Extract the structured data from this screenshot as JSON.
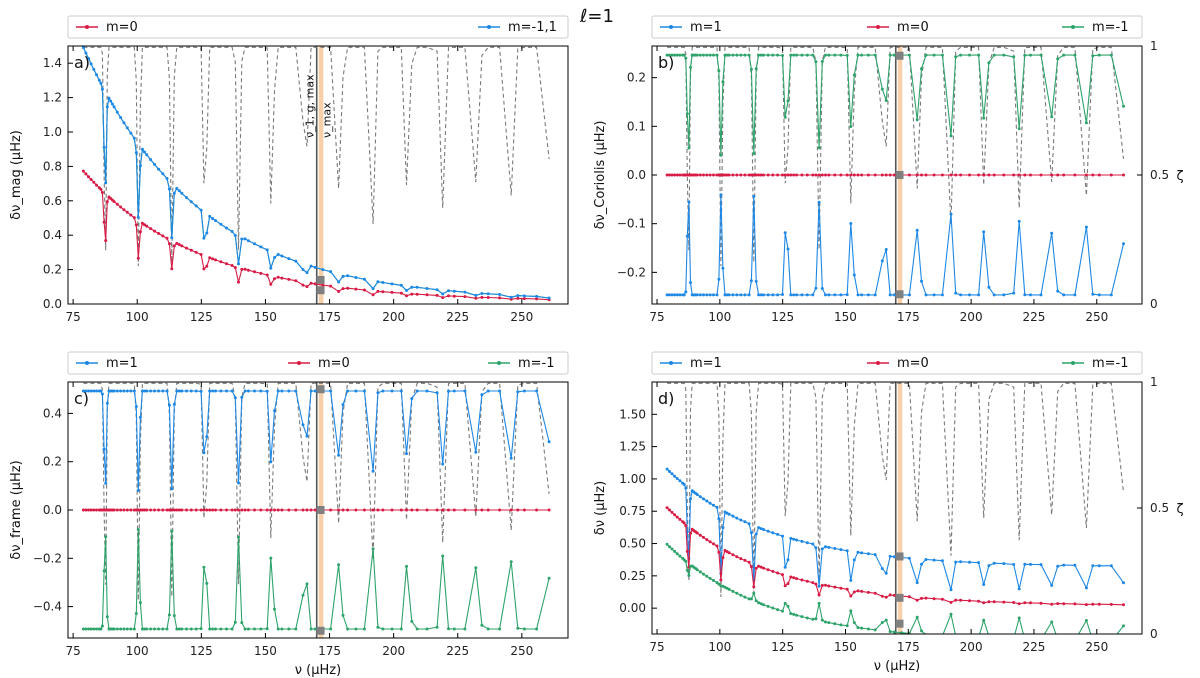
{
  "suptitle": "ℓ=1",
  "colors": {
    "m1": "#1e88e5",
    "m0": "#d81b45",
    "mneg1": "#2ea36a",
    "zeta": "#7a7a7a",
    "numax_band": "#f6c89a",
    "vline": "#555555",
    "marker": "#808080"
  },
  "chart_data": [
    {
      "type": "line",
      "panel": "a)",
      "title": "",
      "xlabel": "",
      "ylabel": "δν_mag (μHz)",
      "xlim": [
        73,
        268
      ],
      "ylim": [
        0,
        1.5
      ],
      "xticks": [
        "75",
        "100",
        "125",
        "150",
        "175",
        "200",
        "225",
        "250"
      ],
      "yticks": [
        "0.0",
        "0.2",
        "0.4",
        "0.6",
        "0.8",
        "1.0",
        "1.2",
        "1.4"
      ],
      "legend": [
        "m=0",
        "m=-1,1"
      ],
      "legend_placement": "top, above plot",
      "annotations": [
        "ν_1, g, max",
        "ν_max"
      ],
      "vline_nu1gmax": 170,
      "numax_band": [
        170.8,
        172.6
      ],
      "right_axis": {
        "label": "",
        "ticks": [],
        "lim": [
          0,
          1
        ]
      },
      "series": [
        {
          "name": "m=0",
          "color_key": "m0",
          "base_start": 0.76,
          "base_decay": 45,
          "dip_depth": 0.4,
          "extra_dips": false
        },
        {
          "name": "m=-1,1",
          "color_key": "m1",
          "alt_color_key": "mneg1",
          "base_start": 1.48,
          "base_decay": 45,
          "dip_depth": 0.4,
          "extra_dips": false
        }
      ],
      "zeta_curve": {
        "name": "ζ",
        "style": "dashed"
      },
      "markers_at_numax": [
        0.14,
        0.08
      ]
    },
    {
      "type": "line",
      "panel": "b)",
      "title": "",
      "xlabel": "",
      "ylabel": "δν_Coriolis (μHz)",
      "xlim": [
        73,
        268
      ],
      "ylim": [
        -0.265,
        0.265
      ],
      "xticks": [
        "75",
        "100",
        "125",
        "150",
        "175",
        "200",
        "225",
        "250"
      ],
      "yticks": [
        "−0.2",
        "−0.1",
        "0.0",
        "0.1",
        "0.2"
      ],
      "legend": [
        "m=1",
        "m=0",
        "m=-1"
      ],
      "legend_placement": "top, above plot",
      "right_axis": {
        "label": "ζ",
        "ticks": [
          "0",
          "0.5",
          "1"
        ],
        "lim": [
          0,
          1
        ]
      },
      "numax_band": [
        170.8,
        172.6
      ],
      "vline_nu1gmax": 170,
      "series": [
        {
          "name": "m=1",
          "color_key": "m1",
          "form": "neg_zeta",
          "amp": 0.25
        },
        {
          "name": "m=0",
          "color_key": "m0",
          "form": "zero"
        },
        {
          "name": "m=-1",
          "color_key": "mneg1",
          "form": "pos_zeta",
          "amp": 0.25
        }
      ],
      "zeta_curve": {
        "name": "ζ",
        "style": "dashed"
      },
      "markers_at_numax": [
        0.245,
        0.0,
        -0.245
      ]
    },
    {
      "type": "line",
      "panel": "c)",
      "title": "",
      "xlabel": "ν (μHz)",
      "ylabel": "δν_frame (μHz)",
      "xlim": [
        73,
        268
      ],
      "ylim": [
        -0.53,
        0.53
      ],
      "xticks": [
        "75",
        "100",
        "125",
        "150",
        "175",
        "200",
        "225",
        "250"
      ],
      "yticks": [
        "−0.4",
        "−0.2",
        "0.0",
        "0.2",
        "0.4"
      ],
      "legend": [
        "m=1",
        "m=0",
        "m=-1"
      ],
      "legend_placement": "top, above plot",
      "right_axis": {
        "label": "",
        "ticks": [],
        "lim": [
          0,
          1
        ]
      },
      "numax_band": [
        170.8,
        172.6
      ],
      "vline_nu1gmax": 170,
      "series": [
        {
          "name": "m=1",
          "color_key": "m1",
          "form": "pos_zeta",
          "amp": 0.5
        },
        {
          "name": "m=0",
          "color_key": "m0",
          "form": "zero"
        },
        {
          "name": "m=-1",
          "color_key": "mneg1",
          "form": "neg_zeta",
          "amp": 0.5
        }
      ],
      "zeta_curve": {
        "name": "ζ",
        "style": "dashed"
      },
      "markers_at_numax": [
        0.5,
        0.0,
        -0.5
      ]
    },
    {
      "type": "line",
      "panel": "d)",
      "title": "",
      "xlabel": "ν (μHz)",
      "ylabel": "δν (μHz)",
      "xlim": [
        73,
        268
      ],
      "ylim": [
        -0.2,
        1.75
      ],
      "xticks": [
        "75",
        "100",
        "125",
        "150",
        "175",
        "200",
        "225",
        "250"
      ],
      "yticks": [
        "0.00",
        "0.25",
        "0.50",
        "0.75",
        "1.00",
        "1.25",
        "1.50"
      ],
      "legend": [
        "m=1",
        "m=0",
        "m=-1"
      ],
      "legend_placement": "top, above plot",
      "right_axis": {
        "label": "ζ",
        "ticks": [
          "0",
          "0.5",
          "1"
        ],
        "lim": [
          0,
          1
        ]
      },
      "numax_band": [
        170.8,
        172.6
      ],
      "vline_nu1gmax": 170,
      "series": [
        {
          "name": "m=1",
          "color_key": "m1",
          "form": "combined",
          "sign": 1
        },
        {
          "name": "m=0",
          "color_key": "m0",
          "form": "combined",
          "sign": 0
        },
        {
          "name": "m=-1",
          "color_key": "mneg1",
          "form": "combined",
          "sign": -1
        }
      ],
      "zeta_curve": {
        "name": "ζ",
        "style": "dashed"
      },
      "markers_at_numax": [
        0.4,
        0.08,
        -0.12
      ]
    }
  ],
  "pmode_dip_frequencies": [
    87.5,
    100.5,
    113.5,
    126.5,
    139.5,
    152.5,
    165.5,
    179,
    192,
    205.5,
    219,
    232.5,
    246,
    260
  ],
  "nu_range": [
    79,
    262
  ]
}
